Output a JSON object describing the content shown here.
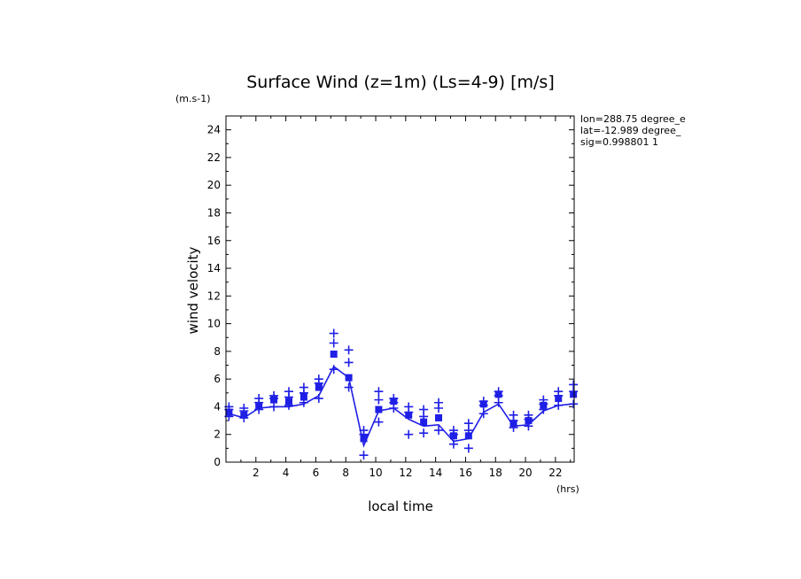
{
  "chart_data": {
    "type": "line",
    "title": "Surface Wind (z=1m) (Ls=4-9) [m/s]",
    "xlabel": "local time",
    "ylabel": "wind velocity",
    "x_unit": "(hrs)",
    "y_unit": "(m.s-1)",
    "annotations": [
      "lon=288.75 degree_e",
      "lat=-12.989 degree_",
      "sig=0.998801 1"
    ],
    "xlim": [
      0,
      23.25
    ],
    "ylim": [
      0,
      25
    ],
    "xticks": [
      2,
      4,
      6,
      8,
      10,
      12,
      14,
      16,
      18,
      20,
      22
    ],
    "yticks": [
      0,
      2,
      4,
      6,
      8,
      10,
      12,
      14,
      16,
      18,
      20,
      22,
      24
    ],
    "grid": false,
    "colors": {
      "series": "#1f1fe6",
      "axes": "#000000"
    },
    "x": [
      0.2,
      1.2,
      2.2,
      3.2,
      4.2,
      5.2,
      6.2,
      7.2,
      8.2,
      9.2,
      10.2,
      11.2,
      12.2,
      13.2,
      14.2,
      15.2,
      16.2,
      17.2,
      18.2,
      19.2,
      20.2,
      21.2,
      22.2,
      23.2
    ],
    "series": [
      {
        "marker": "line",
        "values": [
          3.5,
          3.2,
          3.9,
          4.0,
          4.0,
          4.2,
          4.8,
          6.9,
          6.1,
          1.2,
          3.7,
          3.9,
          3.1,
          2.6,
          2.7,
          1.5,
          1.7,
          3.6,
          4.2,
          2.6,
          2.7,
          3.7,
          4.1,
          4.2
        ]
      },
      {
        "marker": "square",
        "values": [
          3.6,
          3.4,
          4.1,
          4.5,
          4.4,
          4.7,
          5.4,
          7.8,
          6.1,
          1.7,
          3.8,
          4.4,
          3.4,
          2.9,
          3.2,
          1.9,
          1.9,
          4.2,
          4.9,
          2.8,
          3.0,
          4.1,
          4.6,
          4.9
        ]
      },
      {
        "marker": "plus",
        "values": [
          4.0,
          3.9,
          4.6,
          4.8,
          5.1,
          5.4,
          6.0,
          9.3,
          8.1,
          2.3,
          5.1,
          4.6,
          4.0,
          3.8,
          4.3,
          2.3,
          2.8,
          4.4,
          5.1,
          3.4,
          3.4,
          4.5,
          5.1,
          5.6
        ]
      },
      {
        "marker": "plus",
        "values": [
          3.8,
          3.7,
          4.3,
          4.6,
          4.7,
          5.0,
          5.7,
          8.6,
          7.2,
          2.0,
          4.5,
          4.3,
          3.6,
          3.3,
          3.9,
          2.0,
          2.3,
          4.1,
          4.8,
          3.0,
          3.1,
          4.2,
          4.8,
          5.1
        ]
      },
      {
        "marker": "plus",
        "values": [
          3.3,
          3.2,
          3.8,
          4.0,
          4.1,
          4.3,
          4.6,
          6.7,
          5.4,
          0.5,
          2.9,
          3.9,
          2.0,
          2.1,
          2.3,
          1.3,
          1.0,
          3.5,
          4.3,
          2.5,
          2.6,
          3.8,
          4.1,
          4.2
        ]
      }
    ]
  }
}
